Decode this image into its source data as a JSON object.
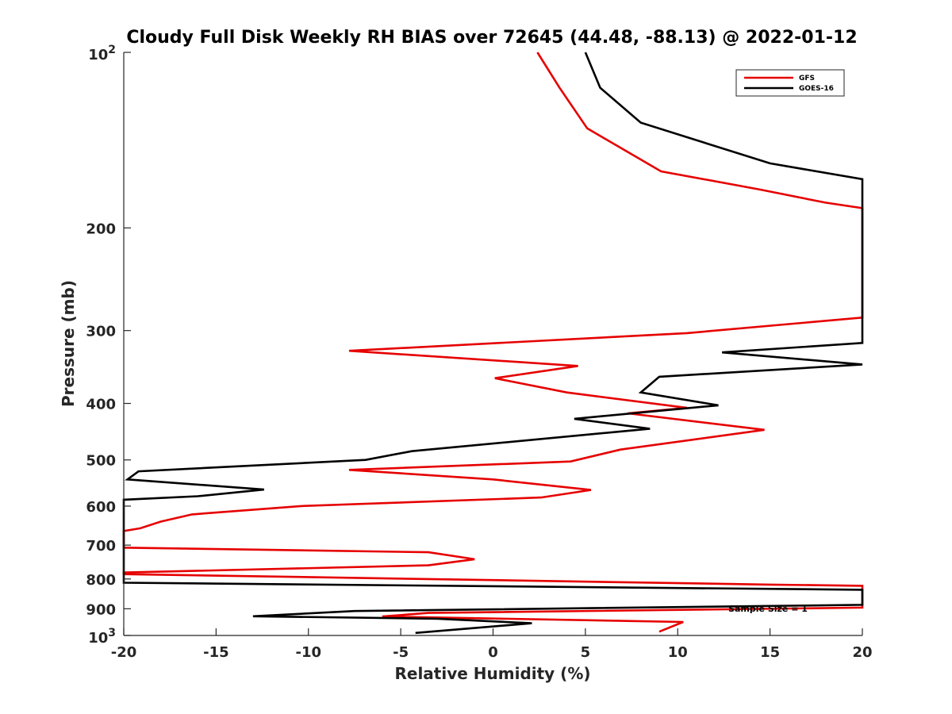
{
  "chart_data": {
    "type": "line",
    "title": "Cloudy Full Disk Weekly RH BIAS over 72645 (44.48, -88.13) @ 2022-01-12",
    "xlabel": "Relative Humidity (%)",
    "ylabel": "Pressure (mb)",
    "xlim": [
      -20,
      20
    ],
    "ylim": [
      100,
      1000
    ],
    "y_scale": "log",
    "y_reversed": true,
    "grid": false,
    "legend_position": "top-right",
    "x_ticks": [
      "-20",
      "-15",
      "-10",
      "-5",
      "0",
      "5",
      "10",
      "15",
      "20"
    ],
    "y_ticks": [
      {
        "value": 100,
        "base": "10",
        "exp": "2"
      },
      {
        "value": 200,
        "label": "200"
      },
      {
        "value": 300,
        "label": "300"
      },
      {
        "value": 400,
        "label": "400"
      },
      {
        "value": 500,
        "label": "500"
      },
      {
        "value": 600,
        "label": "600"
      },
      {
        "value": 700,
        "label": "700"
      },
      {
        "value": 800,
        "label": "800"
      },
      {
        "value": 900,
        "label": "900"
      },
      {
        "value": 1000,
        "base": "10",
        "exp": "3"
      }
    ],
    "annotation": "Sample Size = 1",
    "series": [
      {
        "name": "GFS",
        "color": "#e60000",
        "points": [
          [
            2.4,
            100
          ],
          [
            3.6,
            115
          ],
          [
            5.1,
            135
          ],
          [
            9.1,
            160
          ],
          [
            14.5,
            172
          ],
          [
            18,
            181
          ],
          [
            20,
            185
          ],
          [
            20,
            285
          ],
          [
            10.5,
            303
          ],
          [
            -7.8,
            325
          ],
          [
            4.6,
            345
          ],
          [
            0.1,
            362
          ],
          [
            4,
            383
          ],
          [
            10.5,
            407
          ],
          [
            7.3,
            416
          ],
          [
            14.7,
            444
          ],
          [
            6.9,
            480
          ],
          [
            4.2,
            503
          ],
          [
            -7.8,
            520
          ],
          [
            0,
            540
          ],
          [
            5.3,
            563
          ],
          [
            2.6,
            580
          ],
          [
            -10.4,
            600
          ],
          [
            -16.3,
            620
          ],
          [
            -18,
            638
          ],
          [
            -19.1,
            655
          ],
          [
            -20,
            662
          ],
          [
            -20,
            707
          ],
          [
            -3.5,
            720
          ],
          [
            -1,
            740
          ],
          [
            -3.5,
            758
          ],
          [
            -20,
            780
          ],
          [
            -20,
            785
          ],
          [
            15,
            818
          ],
          [
            20,
            822
          ],
          [
            20,
            896
          ],
          [
            -3.5,
            915
          ],
          [
            -6,
            928
          ],
          [
            10.3,
            948
          ],
          [
            9,
            985
          ]
        ]
      },
      {
        "name": "GOES-16",
        "color": "#000000",
        "points": [
          [
            5,
            100
          ],
          [
            5.8,
            115
          ],
          [
            8,
            132
          ],
          [
            15,
            155
          ],
          [
            20,
            165
          ],
          [
            20,
            315
          ],
          [
            12.4,
            327
          ],
          [
            20,
            343
          ],
          [
            9,
            360
          ],
          [
            8,
            383
          ],
          [
            12.2,
            403
          ],
          [
            4.4,
            425
          ],
          [
            8.5,
            442
          ],
          [
            -4.4,
            483
          ],
          [
            -6.9,
            500
          ],
          [
            -19.2,
            523
          ],
          [
            -19.8,
            540
          ],
          [
            -12.4,
            562
          ],
          [
            -16,
            577
          ],
          [
            -20,
            585
          ],
          [
            -20,
            812
          ],
          [
            20,
            835
          ],
          [
            20,
            886
          ],
          [
            -7.5,
            908
          ],
          [
            -13,
            927
          ],
          [
            -3,
            936
          ],
          [
            2.1,
            953
          ],
          [
            -4.2,
            990
          ]
        ]
      }
    ]
  }
}
